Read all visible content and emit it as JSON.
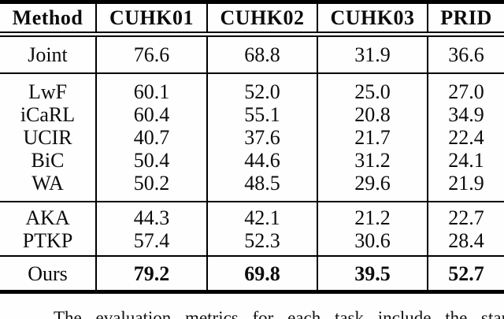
{
  "table": {
    "header": [
      "Method",
      "CUHK01",
      "CUHK02",
      "CUHK03",
      "PRID"
    ],
    "sections": [
      {
        "rows": [
          {
            "cells": [
              "Joint",
              "76.6",
              "68.8",
              "31.9",
              "36.6"
            ]
          }
        ]
      },
      {
        "rows": [
          {
            "cells": [
              "LwF",
              "60.1",
              "52.0",
              "25.0",
              "27.0"
            ]
          },
          {
            "cells": [
              "iCaRL",
              "60.4",
              "55.1",
              "20.8",
              "34.9"
            ]
          },
          {
            "cells": [
              "UCIR",
              "40.7",
              "37.6",
              "21.7",
              "22.4"
            ]
          },
          {
            "cells": [
              "BiC",
              "50.4",
              "44.6",
              "31.2",
              "24.1"
            ]
          },
          {
            "cells": [
              "WA",
              "50.2",
              "48.5",
              "29.6",
              "21.9"
            ]
          }
        ]
      },
      {
        "rows": [
          {
            "cells": [
              "AKA",
              "44.3",
              "42.1",
              "21.2",
              "22.7"
            ]
          },
          {
            "cells": [
              "PTKP",
              "57.4",
              "52.3",
              "30.6",
              "28.4"
            ]
          }
        ]
      },
      {
        "rows": [
          {
            "cells": [
              "Ours",
              "79.2",
              "69.8",
              "39.5",
              "52.7"
            ]
          }
        ]
      }
    ]
  },
  "caption": {
    "text": "The evaluation metrics for each task include the standard"
  },
  "colors": {
    "rule": "#000000",
    "text": "#0b0b0b",
    "background": "#fefefe"
  }
}
